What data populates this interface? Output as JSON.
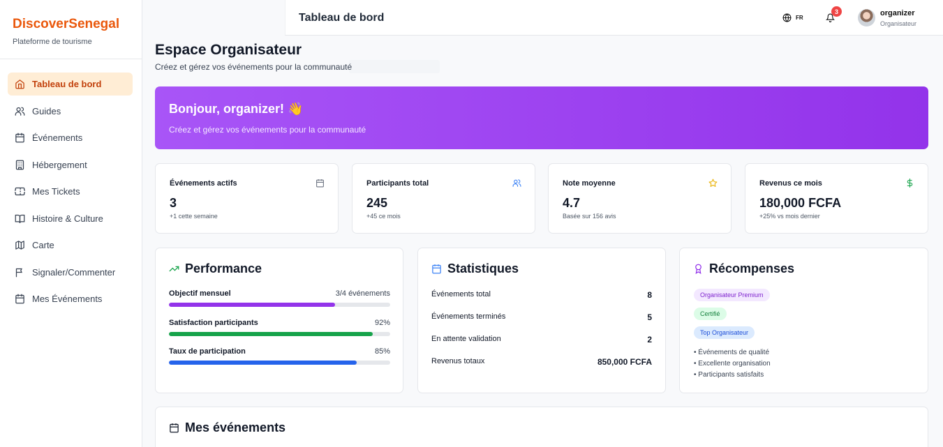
{
  "sidebar": {
    "brand": "DiscoverSenegal",
    "tagline": "Plateforme de tourisme",
    "items": [
      {
        "label": "Tableau de bord",
        "icon": "home-icon"
      },
      {
        "label": "Guides",
        "icon": "users-icon"
      },
      {
        "label": "Événements",
        "icon": "calendar-icon"
      },
      {
        "label": "Hébergement",
        "icon": "building-icon"
      },
      {
        "label": "Mes Tickets",
        "icon": "ticket-icon"
      },
      {
        "label": "Histoire & Culture",
        "icon": "book-icon"
      },
      {
        "label": "Carte",
        "icon": "map-icon"
      },
      {
        "label": "Signaler/Commenter",
        "icon": "flag-icon"
      },
      {
        "label": "Mes Événements",
        "icon": "calendar-icon"
      }
    ]
  },
  "topbar": {
    "title": "Tableau de bord",
    "lang": "FR",
    "notifications": "3",
    "user_name": "organizer",
    "user_role": "Organisateur"
  },
  "header": {
    "title": "Espace Organisateur",
    "subtitle": "Créez et gérez vos événements pour la communauté"
  },
  "hero": {
    "title": "Bonjour, organizer! 👋",
    "subtitle": "Créez et gérez vos événements pour la communauté",
    "color_start": "#a855f7",
    "color_end": "#9333ea"
  },
  "stats": [
    {
      "label": "Événements actifs",
      "value": "3",
      "note": "+1 cette semaine",
      "icon": "calendar-icon",
      "color": "#6b7280"
    },
    {
      "label": "Participants total",
      "value": "245",
      "note": "+45 ce mois",
      "icon": "users-icon",
      "color": "#3b82f6"
    },
    {
      "label": "Note moyenne",
      "value": "4.7",
      "note": "Basée sur 156 avis",
      "icon": "star-icon",
      "color": "#eab308"
    },
    {
      "label": "Revenus ce mois",
      "value": "180,000 FCFA",
      "note": "+25% vs mois dernier",
      "icon": "dollar-icon",
      "color": "#16a34a"
    }
  ],
  "performance": {
    "title": "Performance",
    "rows": [
      {
        "label": "Objectif mensuel",
        "value": "3/4 événements",
        "progress": 0.75,
        "color": "#9333ea"
      },
      {
        "label": "Satisfaction participants",
        "value": "92%",
        "progress": 0.92,
        "color": "#16a34a"
      },
      {
        "label": "Taux de participation",
        "value": "85%",
        "progress": 0.85,
        "color": "#2563eb"
      }
    ]
  },
  "statistics": {
    "title": "Statistiques",
    "rows": [
      {
        "label": "Événements total",
        "value": "8"
      },
      {
        "label": "Événements terminés",
        "value": "5"
      },
      {
        "label": "En attente validation",
        "value": "2"
      },
      {
        "label": "Revenus totaux",
        "value": "850,000 FCFA"
      }
    ]
  },
  "rewards": {
    "title": "Récompenses",
    "badges": [
      {
        "label": "Organisateur Premium",
        "bg": "#f3e8ff",
        "fg": "#7e22ce"
      },
      {
        "label": "Certifié",
        "bg": "#dcfce7",
        "fg": "#15803d"
      },
      {
        "label": "Top Organisateur",
        "bg": "#dbeafe",
        "fg": "#1d4ed8"
      }
    ],
    "bullets": [
      "• Événements de qualité",
      "• Excellente organisation",
      "• Participants satisfaits"
    ]
  },
  "events": {
    "title": "Mes événements"
  }
}
